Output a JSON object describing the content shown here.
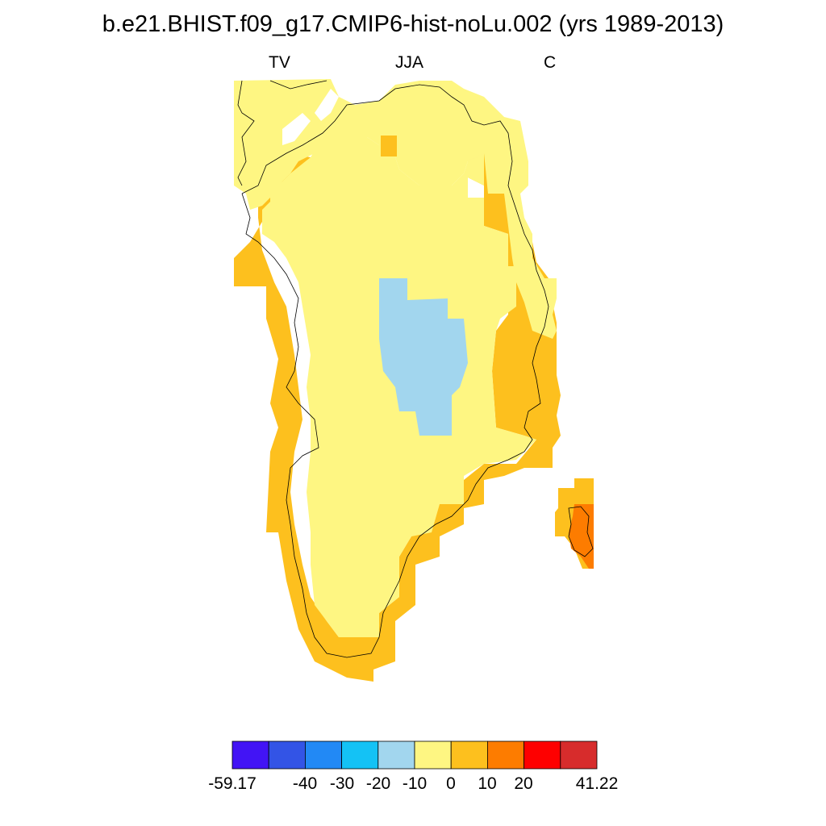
{
  "title": "b.e21.BHIST.f09_g17.CMIP6-hist-noLu.002 (yrs 1989-2013)",
  "subtitle": {
    "left": "TV",
    "center": "JJA",
    "right": "C"
  },
  "colorbar": {
    "colors": [
      "#4214f5",
      "#3354e6",
      "#2289f5",
      "#14c2f5",
      "#a2d6ee",
      "#fef682",
      "#fdc01e",
      "#fd7c00",
      "#fe0000",
      "#d72c2c"
    ],
    "labels": [
      "-59.17",
      "-40",
      "-30",
      "-20",
      "-10",
      "0",
      "10",
      "20",
      "41.22"
    ]
  },
  "map_colors": {
    "light_yellow": "#fef682",
    "amber": "#fdc01e",
    "light_blue": "#a2d6ee",
    "orange": "#fd7c00"
  }
}
